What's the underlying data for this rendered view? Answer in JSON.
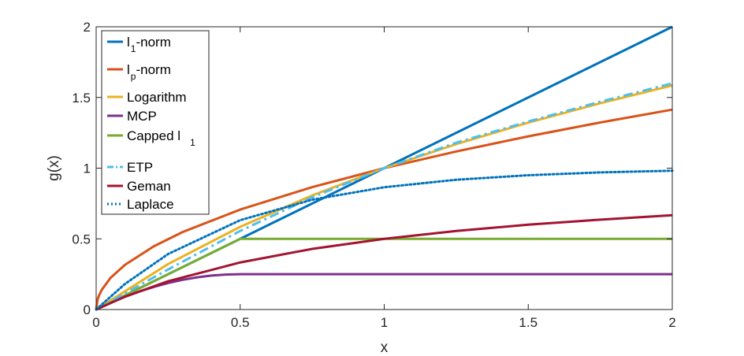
{
  "chart_data": {
    "type": "line",
    "xlabel": "x",
    "ylabel": "g(x)",
    "xlim": [
      0,
      2
    ],
    "ylim": [
      0,
      2
    ],
    "x_ticks": [
      "0",
      "0.5",
      "1",
      "1.5",
      "2"
    ],
    "y_ticks": [
      "0",
      "0.5",
      "1",
      "1.5",
      "2"
    ],
    "grid": false,
    "legend_position": "top-left",
    "series": [
      {
        "name": "l1-norm",
        "legend_main": "l",
        "legend_sub": "1",
        "legend_suffix": "-norm",
        "color": "#0072BD",
        "dash": "solid",
        "x": [
          0,
          0.5,
          1,
          1.5,
          2
        ],
        "y": [
          0,
          0.5,
          1,
          1.5,
          2
        ]
      },
      {
        "name": "lp-norm",
        "legend_main": "l",
        "legend_sub": "p",
        "legend_suffix": "-norm",
        "color": "#D95319",
        "dash": "solid",
        "x": [
          0,
          0.005,
          0.01,
          0.02,
          0.05,
          0.1,
          0.2,
          0.3,
          0.5,
          0.75,
          1,
          1.25,
          1.5,
          1.75,
          2
        ],
        "y": [
          0,
          0.071,
          0.1,
          0.141,
          0.224,
          0.316,
          0.447,
          0.548,
          0.707,
          0.866,
          1,
          1.118,
          1.225,
          1.323,
          1.414
        ]
      },
      {
        "name": "Logarithm",
        "legend_main": "Logarithm",
        "legend_sub": "",
        "legend_suffix": "",
        "color": "#EDB120",
        "dash": "solid",
        "x": [
          0,
          0.25,
          0.5,
          0.75,
          1,
          1.25,
          1.5,
          1.75,
          2
        ],
        "y": [
          0,
          0.322,
          0.585,
          0.807,
          1,
          1.17,
          1.322,
          1.459,
          1.585
        ]
      },
      {
        "name": "MCP",
        "legend_main": "MCP",
        "legend_sub": "",
        "legend_suffix": "",
        "color": "#7E2F8E",
        "dash": "solid",
        "x": [
          0,
          0.05,
          0.1,
          0.15,
          0.2,
          0.25,
          0.3,
          0.35,
          0.4,
          0.45,
          0.5,
          2
        ],
        "y": [
          0,
          0.0475,
          0.09,
          0.1275,
          0.16,
          0.1875,
          0.21,
          0.2275,
          0.24,
          0.2475,
          0.25,
          0.25
        ]
      },
      {
        "name": "Capped l1",
        "legend_main": "Capped l",
        "legend_sub": "1",
        "legend_suffix": "",
        "color": "#77AC30",
        "dash": "solid",
        "x": [
          0,
          0.5,
          2
        ],
        "y": [
          0,
          0.5,
          0.5
        ]
      },
      {
        "name": "ETP",
        "legend_main": "ETP",
        "legend_sub": "",
        "legend_suffix": "",
        "color": "#4DBEEE",
        "dash": "dashdot",
        "x": [
          0,
          0.25,
          0.5,
          0.75,
          1,
          1.25,
          1.5,
          1.75,
          2
        ],
        "y": [
          0,
          0.284,
          0.556,
          0.794,
          1,
          1.18,
          1.33,
          1.47,
          1.6
        ]
      },
      {
        "name": "Geman",
        "legend_main": "Geman",
        "legend_sub": "",
        "legend_suffix": "",
        "color": "#A2142F",
        "dash": "solid",
        "x": [
          0,
          0.1,
          0.25,
          0.5,
          0.75,
          1,
          1.25,
          1.5,
          1.75,
          2
        ],
        "y": [
          0,
          0.091,
          0.2,
          0.333,
          0.429,
          0.5,
          0.556,
          0.6,
          0.636,
          0.667
        ]
      },
      {
        "name": "Laplace",
        "legend_main": "Laplace",
        "legend_sub": "",
        "legend_suffix": "",
        "color": "#0072BD",
        "dash": "dotted",
        "x": [
          0,
          0.1,
          0.25,
          0.5,
          0.75,
          1,
          1.25,
          1.5,
          1.75,
          2
        ],
        "y": [
          0,
          0.181,
          0.393,
          0.632,
          0.777,
          0.865,
          0.918,
          0.95,
          0.97,
          0.982
        ]
      }
    ]
  }
}
